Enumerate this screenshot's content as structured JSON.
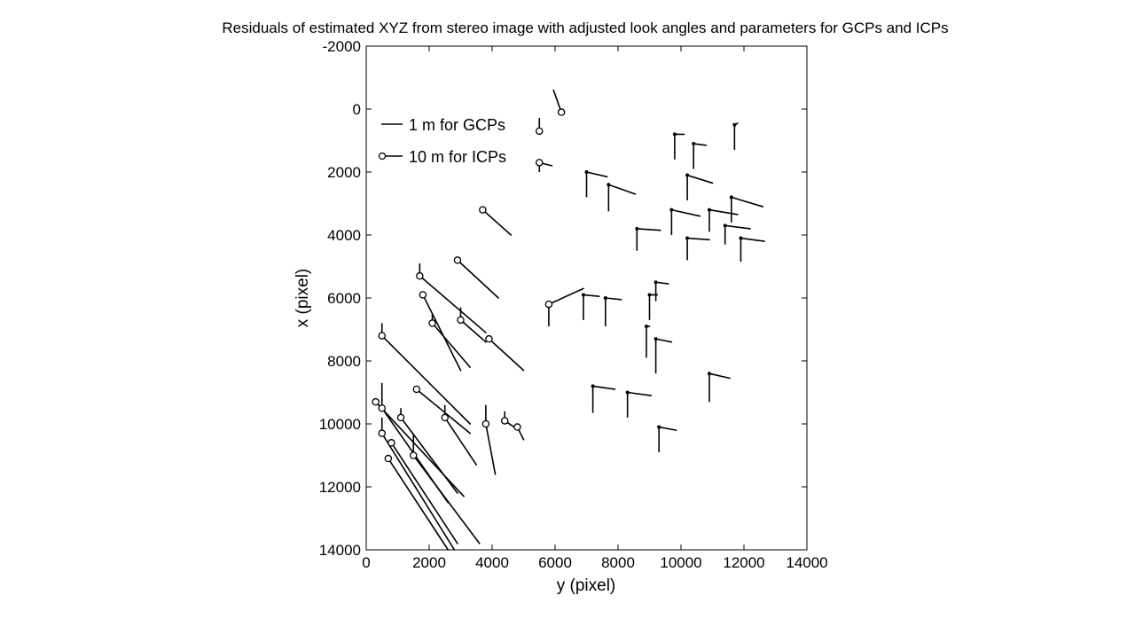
{
  "chart_data": {
    "type": "scatter",
    "title": "Residuals of estimated XYZ from stereo image with adjusted look angles and parameters for GCPs and ICPs",
    "xlabel": "y (pixel)",
    "ylabel": "x (pixel)",
    "xlim": [
      0,
      14000
    ],
    "ylim": [
      -2000,
      14000
    ],
    "y_inverted": true,
    "x_ticks": [
      "0",
      "2000",
      "4000",
      "6000",
      "8000",
      "10000",
      "12000",
      "14000"
    ],
    "y_ticks": [
      "-2000",
      "0",
      "2000",
      "4000",
      "6000",
      "8000",
      "10000",
      "12000",
      "14000"
    ],
    "grid": false,
    "legend": {
      "placement": "top-left",
      "entries": [
        {
          "label": "1 m for GCPs",
          "marker": "line"
        },
        {
          "label": "10 m for ICPs",
          "marker": "circle"
        }
      ]
    },
    "series": [
      {
        "name": "GCP",
        "marker": "dot",
        "points": [
          {
            "y": 9800,
            "x": 800,
            "dy": 300,
            "dx": 0,
            "dz": 800
          },
          {
            "y": 10400,
            "x": 1100,
            "dy": 400,
            "dx": 50,
            "dz": 800
          },
          {
            "y": 11700,
            "x": 500,
            "dy": 100,
            "dx": -50,
            "dz": 800
          },
          {
            "y": 7000,
            "x": 2000,
            "dy": 650,
            "dx": 150,
            "dz": 800
          },
          {
            "y": 7700,
            "x": 2400,
            "dy": 850,
            "dx": 300,
            "dz": 850
          },
          {
            "y": 10200,
            "x": 2100,
            "dy": 800,
            "dx": 250,
            "dz": 800
          },
          {
            "y": 9700,
            "x": 3200,
            "dy": 900,
            "dx": 200,
            "dz": 800
          },
          {
            "y": 10900,
            "x": 3200,
            "dy": 900,
            "dx": 150,
            "dz": 700
          },
          {
            "y": 11600,
            "x": 2800,
            "dy": 1000,
            "dx": 300,
            "dz": 800
          },
          {
            "y": 11400,
            "x": 3700,
            "dy": 800,
            "dx": 100,
            "dz": 600
          },
          {
            "y": 8600,
            "x": 3800,
            "dy": 750,
            "dx": 50,
            "dz": 700
          },
          {
            "y": 10200,
            "x": 4100,
            "dy": 700,
            "dx": 50,
            "dz": 700
          },
          {
            "y": 11900,
            "x": 4100,
            "dy": 750,
            "dx": 100,
            "dz": 750
          },
          {
            "y": 9200,
            "x": 5500,
            "dy": 400,
            "dx": 50,
            "dz": 600
          },
          {
            "y": 9000,
            "x": 5900,
            "dy": 250,
            "dx": 0,
            "dz": 800
          },
          {
            "y": 6900,
            "x": 5900,
            "dy": 500,
            "dx": 50,
            "dz": 800
          },
          {
            "y": 7600,
            "x": 6000,
            "dy": 500,
            "dx": 50,
            "dz": 900
          },
          {
            "y": 8900,
            "x": 6900,
            "dy": 100,
            "dx": 0,
            "dz": 1000
          },
          {
            "y": 9200,
            "x": 7300,
            "dy": 500,
            "dx": 100,
            "dz": 1100
          },
          {
            "y": 10900,
            "x": 8400,
            "dy": 650,
            "dx": 150,
            "dz": 900
          },
          {
            "y": 7200,
            "x": 8800,
            "dy": 700,
            "dx": 100,
            "dz": 850
          },
          {
            "y": 8300,
            "x": 9000,
            "dy": 750,
            "dx": 100,
            "dz": 800
          },
          {
            "y": 9300,
            "x": 10100,
            "dy": 550,
            "dx": 100,
            "dz": 800
          }
        ]
      },
      {
        "name": "ICP",
        "marker": "circle",
        "points": [
          {
            "y": 6200,
            "x": 100,
            "dy": -250,
            "dx": -700,
            "dz": 0
          },
          {
            "y": 5500,
            "x": 700,
            "dy": 0,
            "dx": -400,
            "dz": 0
          },
          {
            "y": 5500,
            "x": 1700,
            "dy": 400,
            "dx": 100,
            "dz": 300
          },
          {
            "y": 3700,
            "x": 3200,
            "dy": 900,
            "dx": 800,
            "dz": 0
          },
          {
            "y": 2900,
            "x": 4800,
            "dy": 1300,
            "dx": 1200,
            "dz": 0
          },
          {
            "y": 1700,
            "x": 5300,
            "dy": 2100,
            "dx": 1800,
            "dz": -400
          },
          {
            "y": 1800,
            "x": 5900,
            "dy": 1200,
            "dx": 2400,
            "dz": 0
          },
          {
            "y": 2100,
            "x": 6800,
            "dy": 1200,
            "dx": 1400,
            "dz": -300
          },
          {
            "y": 3000,
            "x": 6700,
            "dy": 800,
            "dx": 700,
            "dz": -400
          },
          {
            "y": 3900,
            "x": 7300,
            "dy": 1100,
            "dx": 1000,
            "dz": 0
          },
          {
            "y": 5800,
            "x": 6200,
            "dy": 1100,
            "dx": -500,
            "dz": 700
          },
          {
            "y": 500,
            "x": 7200,
            "dy": 2800,
            "dx": 2800,
            "dz": -400
          },
          {
            "y": 1600,
            "x": 8900,
            "dy": 1700,
            "dx": 1400,
            "dz": 0
          },
          {
            "y": 2500,
            "x": 9800,
            "dy": 1000,
            "dx": 1500,
            "dz": -400
          },
          {
            "y": 3800,
            "x": 10000,
            "dy": 300,
            "dx": 1600,
            "dz": -600
          },
          {
            "y": 4400,
            "x": 9900,
            "dy": 300,
            "dx": 200,
            "dz": -300
          },
          {
            "y": 4800,
            "x": 10100,
            "dy": 200,
            "dx": 400,
            "dz": 0
          },
          {
            "y": 300,
            "x": 9300,
            "dy": 2800,
            "dx": 3000,
            "dz": 0
          },
          {
            "y": 500,
            "x": 9500,
            "dy": 2100,
            "dx": 3000,
            "dz": -800
          },
          {
            "y": 1100,
            "x": 9800,
            "dy": 1800,
            "dx": 2400,
            "dz": -300
          },
          {
            "y": 500,
            "x": 10300,
            "dy": 2300,
            "dx": 3700,
            "dz": -500
          },
          {
            "y": 800,
            "x": 10600,
            "dy": 2100,
            "dx": 3200,
            "dz": 0
          },
          {
            "y": 1500,
            "x": 11000,
            "dy": 2100,
            "dx": 2800,
            "dz": -700
          },
          {
            "y": 700,
            "x": 11100,
            "dy": 1900,
            "dx": 2900,
            "dz": 0
          }
        ]
      }
    ]
  }
}
